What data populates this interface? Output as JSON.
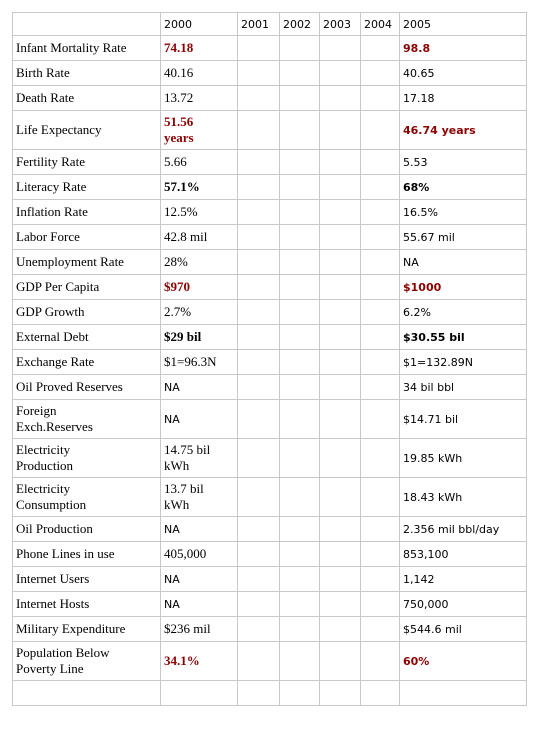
{
  "table": {
    "columns": [
      "2000",
      "2001",
      "2002",
      "2003",
      "2004",
      "2005"
    ],
    "rows": [
      {
        "label": "Infant Mortality Rate",
        "values": [
          "74.18",
          null,
          null,
          null,
          null,
          "98.8"
        ],
        "emphasis": "red"
      },
      {
        "label": "Birth Rate",
        "values": [
          "40.16",
          null,
          null,
          null,
          null,
          "40.65"
        ]
      },
      {
        "label": "Death Rate",
        "values": [
          "13.72",
          null,
          null,
          null,
          null,
          "17.18"
        ]
      },
      {
        "label": "Life Expectancy",
        "values": [
          "51.56\nyears",
          null,
          null,
          null,
          null,
          "46.74 years"
        ],
        "emphasis": "red"
      },
      {
        "label": "Fertility Rate",
        "values": [
          "5.66",
          null,
          null,
          null,
          null,
          "5.53"
        ]
      },
      {
        "label": "Literacy Rate",
        "values": [
          "57.1%",
          null,
          null,
          null,
          null,
          "68%"
        ],
        "emphasis": "bold"
      },
      {
        "label": "Inflation Rate",
        "values": [
          "12.5%",
          null,
          null,
          null,
          null,
          "16.5%"
        ]
      },
      {
        "label": "Labor Force",
        "values": [
          "42.8 mil",
          null,
          null,
          null,
          null,
          "55.67 mil"
        ]
      },
      {
        "label": "Unemployment Rate",
        "values": [
          "28%",
          null,
          null,
          null,
          null,
          "NA"
        ]
      },
      {
        "label": "GDP Per Capita",
        "values": [
          "$970",
          null,
          null,
          null,
          null,
          "$1000"
        ],
        "emphasis": "red"
      },
      {
        "label": "GDP Growth",
        "values": [
          "2.7%",
          null,
          null,
          null,
          null,
          "6.2%"
        ]
      },
      {
        "label": "External Debt",
        "values": [
          "$29 bil",
          null,
          null,
          null,
          null,
          "$30.55 bil"
        ],
        "emphasis": "bold"
      },
      {
        "label": "Exchange Rate",
        "values": [
          "$1=96.3N",
          null,
          null,
          null,
          null,
          "$1=132.89N"
        ]
      },
      {
        "label": "Oil Proved Reserves",
        "values": [
          "NA",
          null,
          null,
          null,
          null,
          "34 bil bbl"
        ]
      },
      {
        "label": "Foreign\nExch.Reserves",
        "values": [
          "NA",
          null,
          null,
          null,
          null,
          "$14.71 bil"
        ]
      },
      {
        "label": "Electricity\nProduction",
        "values": [
          "14.75 bil\nkWh",
          null,
          null,
          null,
          null,
          "19.85 kWh"
        ]
      },
      {
        "label": "Electricity\nConsumption",
        "values": [
          "13.7 bil\nkWh",
          null,
          null,
          null,
          null,
          "18.43 kWh"
        ]
      },
      {
        "label": "Oil Production",
        "values": [
          "NA",
          null,
          null,
          null,
          null,
          "2.356 mil bbl/day"
        ]
      },
      {
        "label": "Phone Lines in use",
        "values": [
          "405,000",
          null,
          null,
          null,
          null,
          "853,100"
        ]
      },
      {
        "label": "Internet Users",
        "values": [
          "NA",
          null,
          null,
          null,
          null,
          "1,142"
        ]
      },
      {
        "label": "Internet Hosts",
        "values": [
          "NA",
          null,
          null,
          null,
          null,
          "750,000"
        ]
      },
      {
        "label": "Military Expenditure",
        "values": [
          "$236 mil",
          null,
          null,
          null,
          null,
          "$544.6 mil"
        ]
      },
      {
        "label": "Population Below\nPoverty Line",
        "values": [
          "34.1%",
          null,
          null,
          null,
          null,
          "60%"
        ],
        "emphasis": "red"
      }
    ]
  }
}
